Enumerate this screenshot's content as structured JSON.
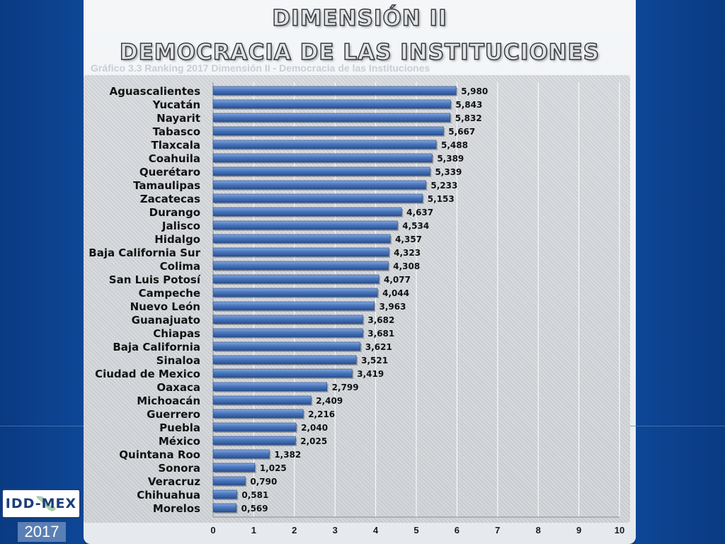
{
  "header": {
    "title_line1": "DIMENSIÓN  II",
    "title_line2": "DEMOCRACIA  DE  LAS  INSTITUCIONES",
    "subtitle": "Gráfico 3.3 Ranking 2017 Dimensión II - Democracia de las Instituciones"
  },
  "logo": {
    "text": "IDD-MEX",
    "year": "2017"
  },
  "colors": {
    "bar_fill": "#4a77bf",
    "bar_dark": "#2a4f8f",
    "bar_light": "#86a8dc",
    "background_blue": "#0b3f8a",
    "panel": "#eef1f4"
  },
  "chart_data": {
    "type": "bar",
    "orientation": "horizontal",
    "categories": [
      "Aguascalientes",
      "Yucatán",
      "Nayarit",
      "Tabasco",
      "Tlaxcala",
      "Coahuila",
      "Querétaro",
      "Tamaulipas",
      "Zacatecas",
      "Durango",
      "Jalisco",
      "Hidalgo",
      "Baja California Sur",
      "Colima",
      "San Luis Potosí",
      "Campeche",
      "Nuevo León",
      "Guanajuato",
      "Chiapas",
      "Baja California",
      "Sinaloa",
      "Ciudad de Mexico",
      "Oaxaca",
      "Michoacán",
      "Guerrero",
      "Puebla",
      "México",
      "Quintana Roo",
      "Sonora",
      "Veracruz",
      "Chihuahua",
      "Morelos"
    ],
    "values": [
      5.98,
      5.843,
      5.832,
      5.667,
      5.488,
      5.389,
      5.339,
      5.233,
      5.153,
      4.637,
      4.534,
      4.357,
      4.323,
      4.308,
      4.077,
      4.044,
      3.963,
      3.682,
      3.681,
      3.621,
      3.521,
      3.419,
      2.799,
      2.409,
      2.216,
      2.04,
      2.025,
      1.382,
      1.025,
      0.79,
      0.581,
      0.569
    ],
    "value_labels": [
      "5,980",
      "5,843",
      "5,832",
      "5,667",
      "5,488",
      "5,389",
      "5,339",
      "5,233",
      "5,153",
      "4,637",
      "4,534",
      "4,357",
      "4,323",
      "4,308",
      "4,077",
      "4,044",
      "3,963",
      "3,682",
      "3,681",
      "3,621",
      "3,521",
      "3,419",
      "2,799",
      "2,409",
      "2,216",
      "2,040",
      "2,025",
      "1,382",
      "1,025",
      "0,790",
      "0,581",
      "0,569"
    ],
    "xlim": [
      0,
      10
    ],
    "xticks": [
      "0",
      "1",
      "2",
      "3",
      "4",
      "5",
      "6",
      "7",
      "8",
      "9",
      "10"
    ],
    "grid": "vertical",
    "legend": "none"
  }
}
